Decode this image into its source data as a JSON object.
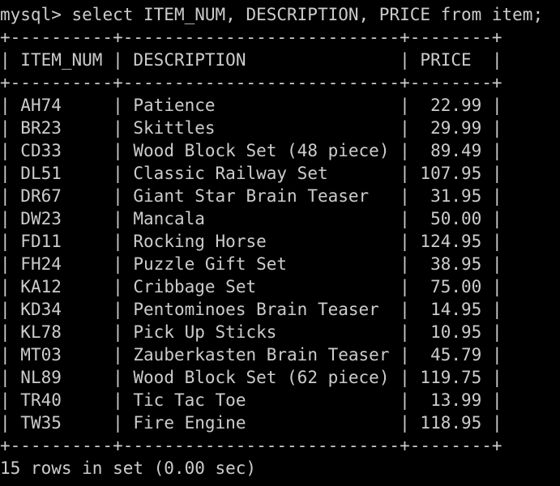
{
  "terminal": {
    "prompt": "mysql> ",
    "command": "select ITEM_NUM, DESCRIPTION, PRICE from item;",
    "columns": [
      "ITEM_NUM",
      "DESCRIPTION",
      "PRICE"
    ],
    "rows": [
      {
        "item_num": "AH74",
        "description": "Patience",
        "price": "22.99"
      },
      {
        "item_num": "BR23",
        "description": "Skittles",
        "price": "29.99"
      },
      {
        "item_num": "CD33",
        "description": "Wood Block Set (48 piece)",
        "price": "89.49"
      },
      {
        "item_num": "DL51",
        "description": "Classic Railway Set",
        "price": "107.95"
      },
      {
        "item_num": "DR67",
        "description": "Giant Star Brain Teaser",
        "price": "31.95"
      },
      {
        "item_num": "DW23",
        "description": "Mancala",
        "price": "50.00"
      },
      {
        "item_num": "FD11",
        "description": "Rocking Horse",
        "price": "124.95"
      },
      {
        "item_num": "FH24",
        "description": "Puzzle Gift Set",
        "price": "38.95"
      },
      {
        "item_num": "KA12",
        "description": "Cribbage Set",
        "price": "75.00"
      },
      {
        "item_num": "KD34",
        "description": "Pentominoes Brain Teaser",
        "price": "14.95"
      },
      {
        "item_num": "KL78",
        "description": "Pick Up Sticks",
        "price": "10.95"
      },
      {
        "item_num": "MT03",
        "description": "Zauberkasten Brain Teaser",
        "price": "45.79"
      },
      {
        "item_num": "NL89",
        "description": "Wood Block Set (62 piece)",
        "price": "119.75"
      },
      {
        "item_num": "TR40",
        "description": "Tic Tac Toe",
        "price": "13.99"
      },
      {
        "item_num": "TW35",
        "description": "Fire Engine",
        "price": "118.95"
      }
    ],
    "footer": "15 rows in set (0.00 sec)",
    "colors": {
      "background": "#000000",
      "text": "#cccccc"
    }
  }
}
